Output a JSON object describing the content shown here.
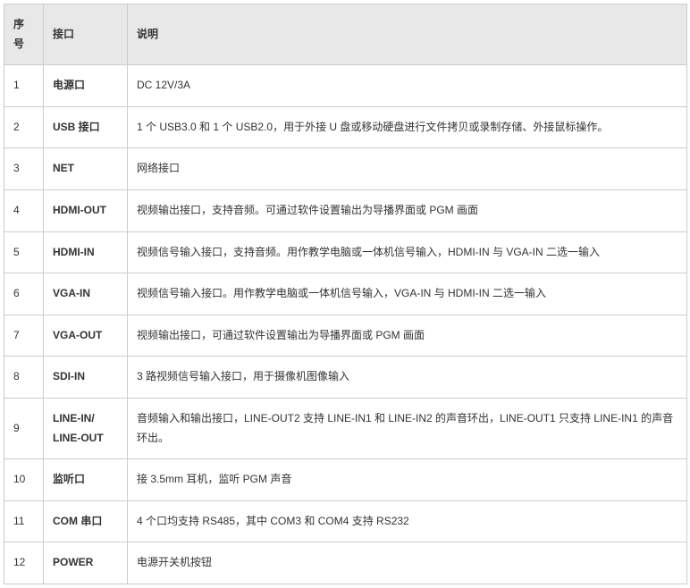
{
  "table": {
    "headers": {
      "num": "序号",
      "port": "接口",
      "desc": "说明"
    },
    "col_widths": {
      "num": 44,
      "port": 94,
      "desc": 626
    },
    "header_bg": "#e8e8e8",
    "border_color": "#cccccc",
    "text_color": "#333333",
    "font_size": 12,
    "rows": [
      {
        "num": "1",
        "port": "电源口",
        "desc": "DC 12V/3A"
      },
      {
        "num": "2",
        "port": "USB 接口",
        "desc": "1 个 USB3.0 和 1 个 USB2.0，用于外接 U 盘或移动硬盘进行文件拷贝或录制存储、外接鼠标操作。"
      },
      {
        "num": "3",
        "port": "NET",
        "desc": "网络接口"
      },
      {
        "num": "4",
        "port": "HDMI-OUT",
        "desc": "视频输出接口，支持音频。可通过软件设置输出为导播界面或 PGM 画面"
      },
      {
        "num": "5",
        "port": "HDMI-IN",
        "desc": "视频信号输入接口，支持音频。用作教学电脑或一体机信号输入，HDMI-IN 与 VGA-IN 二选一输入"
      },
      {
        "num": "6",
        "port": "VGA-IN",
        "desc": "视频信号输入接口。用作教学电脑或一体机信号输入，VGA-IN 与 HDMI-IN 二选一输入"
      },
      {
        "num": "7",
        "port": "VGA-OUT",
        "desc": "视频输出接口，可通过软件设置输出为导播界面或 PGM 画面"
      },
      {
        "num": "8",
        "port": "SDI-IN",
        "desc": "3 路视频信号输入接口，用于摄像机图像输入"
      },
      {
        "num": "9",
        "port": "LINE-IN/ LINE-OUT",
        "desc": "音频输入和输出接口，LINE-OUT2 支持 LINE-IN1 和 LINE-IN2 的声音环出，LINE-OUT1 只支持 LINE-IN1 的声音环出。"
      },
      {
        "num": "10",
        "port": "监听口",
        "desc": "接 3.5mm 耳机，监听 PGM 声音"
      },
      {
        "num": "11",
        "port": "COM 串口",
        "desc": "4 个口均支持 RS485，其中 COM3 和 COM4 支持 RS232"
      },
      {
        "num": "12",
        "port": "POWER",
        "desc": "电源开关机按钮"
      }
    ]
  }
}
